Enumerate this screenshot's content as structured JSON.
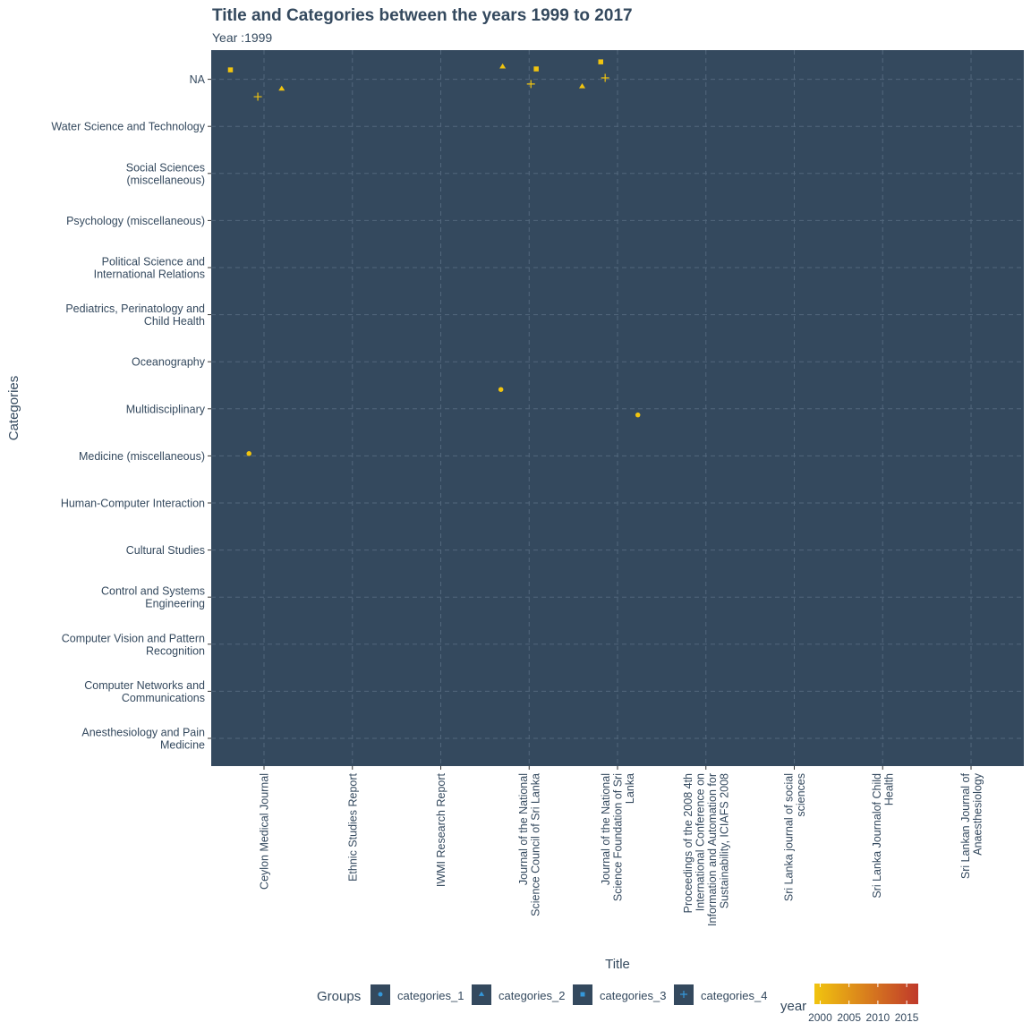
{
  "chart_data": {
    "type": "scatter",
    "title": "Title and Categories between the years 1999 to 2017",
    "subtitle": "Year :1999",
    "xlabel": "Title",
    "ylabel": "Categories",
    "x_categories": [
      [
        "Ceylon Medical Journal"
      ],
      [
        "Ethnic Studies Report"
      ],
      [
        "IWMI Research Report"
      ],
      [
        "Journal of the National",
        "Science Council of Sri Lanka"
      ],
      [
        "Journal of the National",
        "Science Foundation of Sri",
        "Lanka"
      ],
      [
        "Proceedings of the 2008 4th",
        "International Conference on",
        "Information and Automation for",
        "Sustainability, ICIAFS 2008"
      ],
      [
        "Sri Lanka journal of social",
        "sciences"
      ],
      [
        "Sri Lanka Journalof Child",
        "Health"
      ],
      [
        "Sri Lankan Journal of",
        "Anaesthesiology"
      ]
    ],
    "y_categories": [
      [
        "Anesthesiology and Pain",
        "Medicine"
      ],
      [
        "Computer Networks and",
        "Communications"
      ],
      [
        "Computer Vision and Pattern",
        "Recognition"
      ],
      [
        "Control and Systems",
        "Engineering"
      ],
      [
        "Cultural Studies"
      ],
      [
        "Human-Computer Interaction"
      ],
      [
        "Medicine (miscellaneous)"
      ],
      [
        "Multidisciplinary"
      ],
      [
        "Oceanography"
      ],
      [
        "Pediatrics, Perinatology and",
        "Child Health"
      ],
      [
        "Political Science and",
        "International Relations"
      ],
      [
        "Psychology (miscellaneous)"
      ],
      [
        "Social Sciences",
        "(miscellaneous)"
      ],
      [
        "Water Science and Technology"
      ],
      [
        "NA"
      ]
    ],
    "points": [
      {
        "x": 1,
        "y": 15,
        "x_jitter": -0.38,
        "y_jitter": 0.2,
        "group": "categories_3",
        "year": 1999
      },
      {
        "x": 1,
        "y": 15,
        "x_jitter": -0.07,
        "y_jitter": -0.37,
        "group": "categories_4",
        "year": 1999
      },
      {
        "x": 1,
        "y": 15,
        "x_jitter": 0.2,
        "y_jitter": -0.2,
        "group": "categories_2",
        "year": 1999
      },
      {
        "x": 1,
        "y": 7,
        "x_jitter": -0.17,
        "y_jitter": 0.05,
        "group": "categories_1",
        "year": 1999
      },
      {
        "x": 4,
        "y": 15,
        "x_jitter": -0.3,
        "y_jitter": 0.27,
        "group": "categories_2",
        "year": 1999
      },
      {
        "x": 4,
        "y": 15,
        "x_jitter": 0.08,
        "y_jitter": 0.22,
        "group": "categories_3",
        "year": 1999
      },
      {
        "x": 4,
        "y": 15,
        "x_jitter": 0.02,
        "y_jitter": -0.1,
        "group": "categories_4",
        "year": 1999
      },
      {
        "x": 4,
        "y": 15,
        "x_jitter": 0.6,
        "y_jitter": -0.15,
        "group": "categories_2",
        "year": 1999
      },
      {
        "x": 4,
        "y": 8,
        "x_jitter": -0.32,
        "y_jitter": 0.41,
        "group": "categories_1",
        "year": 1999
      },
      {
        "x": 5,
        "y": 15,
        "x_jitter": -0.19,
        "y_jitter": 0.37,
        "group": "categories_3",
        "year": 1999
      },
      {
        "x": 5,
        "y": 15,
        "x_jitter": -0.14,
        "y_jitter": 0.03,
        "group": "categories_4",
        "year": 1999
      },
      {
        "x": 5,
        "y": 8,
        "x_jitter": 0.23,
        "y_jitter": -0.13,
        "group": "categories_1",
        "year": 1999
      }
    ],
    "legend": {
      "groups_title": "Groups",
      "groups": [
        "categories_1",
        "categories_2",
        "categories_3",
        "categories_4"
      ],
      "year_title": "year",
      "year_ticks": [
        "2000",
        "2005",
        "2010",
        "2015"
      ],
      "year_range": [
        1999,
        2017
      ]
    },
    "grid": true,
    "legend_position": "bottom",
    "colors": {
      "panel_bg": "#34495e",
      "grid": "#52677c",
      "text": "#34495e",
      "axis_text": "#34495e",
      "point_1999": "#f1c40f",
      "year_low": "#f1c40f",
      "year_high": "#c0392b",
      "legend_key_symbol": "#3498db"
    }
  }
}
